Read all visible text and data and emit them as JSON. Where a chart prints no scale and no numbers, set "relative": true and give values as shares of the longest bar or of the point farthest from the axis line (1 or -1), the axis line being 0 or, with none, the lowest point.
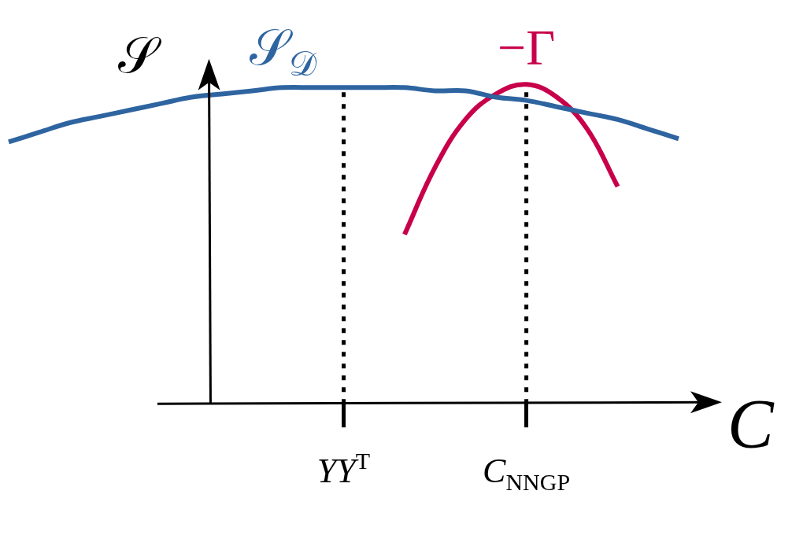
{
  "chart_data": {
    "type": "line",
    "relative": true,
    "xlabel": "C",
    "ylabel": "𝒮",
    "categories": [
      null,
      null,
      null,
      null,
      null,
      null,
      null,
      null,
      null,
      null,
      null,
      "YY$^{T}$",
      null,
      null,
      null,
      null,
      null,
      "C$_{NNGP}$",
      null,
      null,
      null,
      null,
      null
    ],
    "series": [
      {
        "name": "𝒮$_{𝒟}$",
        "color": "#2e64a0",
        "values": [
          0.82,
          0.85,
          0.88,
          0.9,
          0.92,
          0.94,
          0.96,
          0.97,
          0.98,
          0.99,
          0.99,
          0.99,
          0.99,
          0.99,
          0.98,
          0.98,
          0.96,
          0.95,
          0.93,
          0.91,
          0.89,
          0.86,
          0.83
        ]
      },
      {
        "name": "−Γ",
        "color": "#c8004b",
        "values": [
          null,
          null,
          null,
          null,
          null,
          null,
          null,
          null,
          null,
          null,
          null,
          null,
          null,
          0.53,
          0.74,
          0.89,
          0.97,
          1.0,
          0.96,
          0.86,
          0.68,
          null,
          null
        ]
      }
    ],
    "ref_lines": [
      {
        "axis": "x",
        "value": "YY$^{T}$",
        "color": "#000000",
        "line_style": "dotted"
      },
      {
        "axis": "x",
        "value": "C$_{NNGP}$",
        "color": "#000000",
        "line_style": "dotted"
      }
    ]
  }
}
